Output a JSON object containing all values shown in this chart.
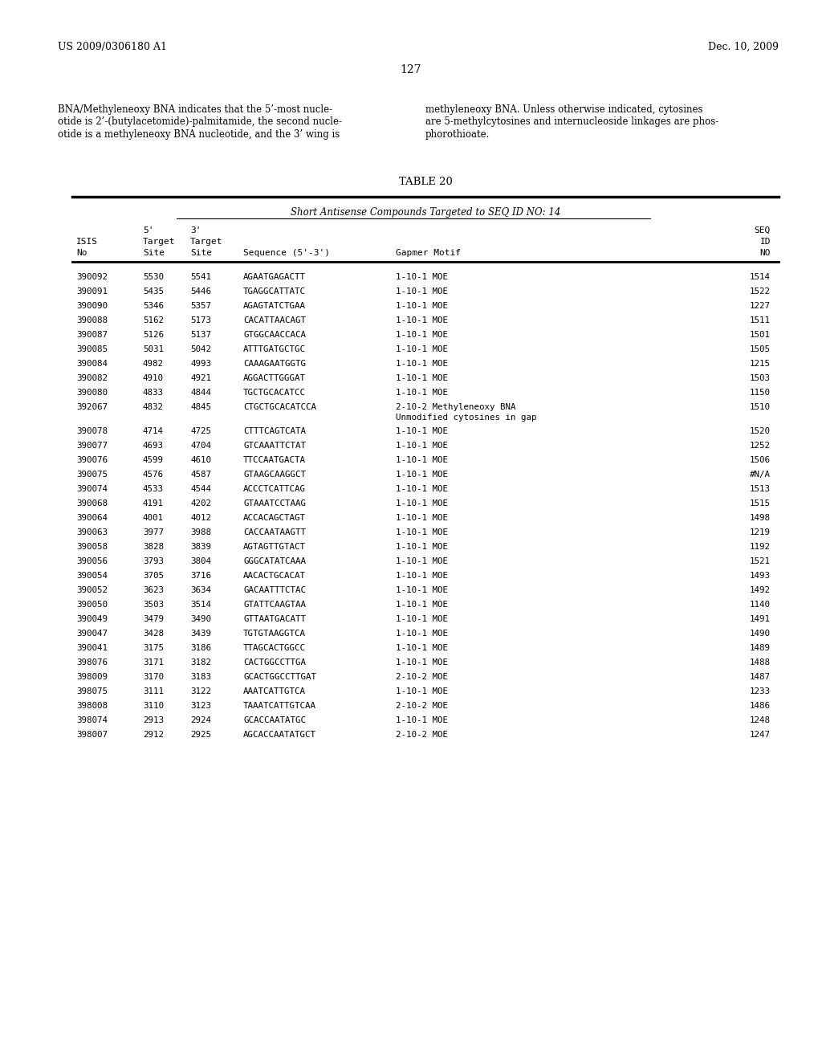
{
  "header_left": "US 2009/0306180 A1",
  "header_right": "Dec. 10, 2009",
  "page_number": "127",
  "paragraph_left": "BNA/Methyleneoxy BNA indicates that the 5’-most nucle-\notide is 2’-(butylacetomide)-palmitamide, the second nucle-\notide is a methyleneoxy BNA nucleotide, and the 3’ wing is",
  "paragraph_right": "methyleneoxy BNA. Unless otherwise indicated, cytosines\nare 5-methylcytosines and internucleoside linkages are phos-\nphorothioate.",
  "table_title": "TABLE 20",
  "table_subtitle": "Short Antisense Compounds Targeted to SEQ ID NO: 14",
  "rows": [
    [
      "390092",
      "5530",
      "5541",
      "AGAATGAGACTT",
      "1-10-1 MOE",
      "1514"
    ],
    [
      "390091",
      "5435",
      "5446",
      "TGAGGCATTATC",
      "1-10-1 MOE",
      "1522"
    ],
    [
      "390090",
      "5346",
      "5357",
      "AGAGTATCTGAA",
      "1-10-1 MOE",
      "1227"
    ],
    [
      "390088",
      "5162",
      "5173",
      "CACATTAACAGT",
      "1-10-1 MOE",
      "1511"
    ],
    [
      "390087",
      "5126",
      "5137",
      "GTGGCAACCACA",
      "1-10-1 MOE",
      "1501"
    ],
    [
      "390085",
      "5031",
      "5042",
      "ATTTGATGCTGC",
      "1-10-1 MOE",
      "1505"
    ],
    [
      "390084",
      "4982",
      "4993",
      "CAAAGAATGGTG",
      "1-10-1 MOE",
      "1215"
    ],
    [
      "390082",
      "4910",
      "4921",
      "AGGACTTGGGAT",
      "1-10-1 MOE",
      "1503"
    ],
    [
      "390080",
      "4833",
      "4844",
      "TGCTGCACATCC",
      "1-10-1 MOE",
      "1150"
    ],
    [
      "392067",
      "4832",
      "4845",
      "CTGCTGCACATCCA",
      "2-10-2 Methyleneoxy BNA\nUnmodified cytosines in gap",
      "1510"
    ],
    [
      "390078",
      "4714",
      "4725",
      "CTTTCAGTCATA",
      "1-10-1 MOE",
      "1520"
    ],
    [
      "390077",
      "4693",
      "4704",
      "GTCAAATTCTAT",
      "1-10-1 MOE",
      "1252"
    ],
    [
      "390076",
      "4599",
      "4610",
      "TTCCAATGACTA",
      "1-10-1 MOE",
      "1506"
    ],
    [
      "390075",
      "4576",
      "4587",
      "GTAAGCAAGGCT",
      "1-10-1 MOE",
      "#N/A"
    ],
    [
      "390074",
      "4533",
      "4544",
      "ACCCTCATTCAG",
      "1-10-1 MOE",
      "1513"
    ],
    [
      "390068",
      "4191",
      "4202",
      "GTAAATCCTAAG",
      "1-10-1 MOE",
      "1515"
    ],
    [
      "390064",
      "4001",
      "4012",
      "ACCACAGCTAGT",
      "1-10-1 MOE",
      "1498"
    ],
    [
      "390063",
      "3977",
      "3988",
      "CACCAATAAGTT",
      "1-10-1 MOE",
      "1219"
    ],
    [
      "390058",
      "3828",
      "3839",
      "AGTAGTTGTACT",
      "1-10-1 MOE",
      "1192"
    ],
    [
      "390056",
      "3793",
      "3804",
      "GGGCATATCAAA",
      "1-10-1 MOE",
      "1521"
    ],
    [
      "390054",
      "3705",
      "3716",
      "AACACTGCACAT",
      "1-10-1 MOE",
      "1493"
    ],
    [
      "390052",
      "3623",
      "3634",
      "GACAATTTCTAC",
      "1-10-1 MOE",
      "1492"
    ],
    [
      "390050",
      "3503",
      "3514",
      "GTATTCAAGTAA",
      "1-10-1 MOE",
      "1140"
    ],
    [
      "390049",
      "3479",
      "3490",
      "GTTAATGACATT",
      "1-10-1 MOE",
      "1491"
    ],
    [
      "390047",
      "3428",
      "3439",
      "TGTGTAAGGTCA",
      "1-10-1 MOE",
      "1490"
    ],
    [
      "390041",
      "3175",
      "3186",
      "TTAGCACTGGCC",
      "1-10-1 MOE",
      "1489"
    ],
    [
      "398076",
      "3171",
      "3182",
      "CACTGGCCTTGA",
      "1-10-1 MOE",
      "1488"
    ],
    [
      "398009",
      "3170",
      "3183",
      "GCACTGGCCTTGAT",
      "2-10-2 MOE",
      "1487"
    ],
    [
      "398075",
      "3111",
      "3122",
      "AAATCATTGTCA",
      "1-10-1 MOE",
      "1233"
    ],
    [
      "398008",
      "3110",
      "3123",
      "TAAATCATTGTCAA",
      "2-10-2 MOE",
      "1486"
    ],
    [
      "398074",
      "2913",
      "2924",
      "GCACCAATATGC",
      "1-10-1 MOE",
      "1248"
    ],
    [
      "398007",
      "2912",
      "2925",
      "AGCACCAATATGCT",
      "2-10-2 MOE",
      "1247"
    ]
  ],
  "bg_color": "#ffffff",
  "text_color": "#000000"
}
